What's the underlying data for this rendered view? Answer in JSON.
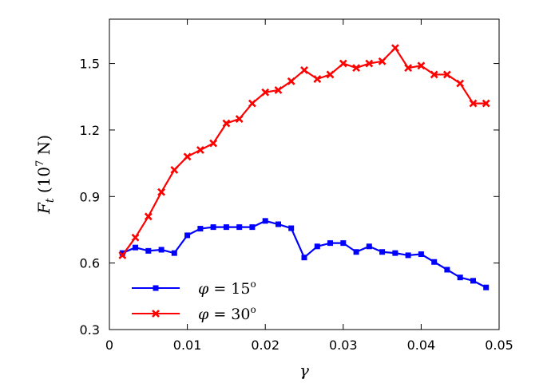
{
  "chart_data": {
    "type": "line",
    "xlabel": "γ",
    "ylabel": "F_t (10^7 N)",
    "ylabel_parts": {
      "main": "F",
      "sub": "t",
      "pre": " (10",
      "sup": "7",
      "post": " N)"
    },
    "xlim": [
      0,
      0.05
    ],
    "ylim": [
      0.3,
      1.7
    ],
    "x_ticks": [
      0,
      0.01,
      0.02,
      0.03,
      0.04,
      0.05
    ],
    "x_tick_labels": [
      "0",
      "0.01",
      "0.02",
      "0.03",
      "0.04",
      "0.05"
    ],
    "y_ticks": [
      0.3,
      0.6,
      0.9,
      1.2,
      1.5
    ],
    "y_tick_labels": [
      "0.3",
      "0.6",
      "0.9",
      "1.2",
      "1.5"
    ],
    "grid": false,
    "legend_position": "bottom-left",
    "x": [
      0.00167,
      0.00333,
      0.005,
      0.00667,
      0.00833,
      0.01,
      0.01167,
      0.01333,
      0.015,
      0.01667,
      0.01833,
      0.02,
      0.02167,
      0.02333,
      0.025,
      0.02667,
      0.02833,
      0.03,
      0.03167,
      0.03333,
      0.035,
      0.03667,
      0.03833,
      0.04,
      0.04167,
      0.04333,
      0.045,
      0.04667,
      0.04833
    ],
    "series": [
      {
        "name": "φ = 15°",
        "label_parts": {
          "var": "φ",
          "eq": " = 15",
          "deg": "o"
        },
        "color": "#0000ff",
        "marker": "square",
        "values": [
          0.645,
          0.67,
          0.655,
          0.66,
          0.645,
          0.725,
          0.755,
          0.762,
          0.762,
          0.762,
          0.762,
          0.79,
          0.775,
          0.757,
          0.625,
          0.675,
          0.69,
          0.69,
          0.65,
          0.675,
          0.65,
          0.645,
          0.635,
          0.64,
          0.605,
          0.57,
          0.535,
          0.52,
          0.49
        ]
      },
      {
        "name": "φ = 30°",
        "label_parts": {
          "var": "φ",
          "eq": " = 30",
          "deg": "o"
        },
        "color": "#ff0000",
        "marker": "x",
        "values": [
          0.635,
          0.715,
          0.81,
          0.92,
          1.02,
          1.08,
          1.11,
          1.14,
          1.23,
          1.25,
          1.32,
          1.37,
          1.38,
          1.42,
          1.47,
          1.43,
          1.45,
          1.5,
          1.48,
          1.5,
          1.51,
          1.57,
          1.48,
          1.49,
          1.45,
          1.45,
          1.41,
          1.32,
          1.32
        ]
      }
    ]
  }
}
